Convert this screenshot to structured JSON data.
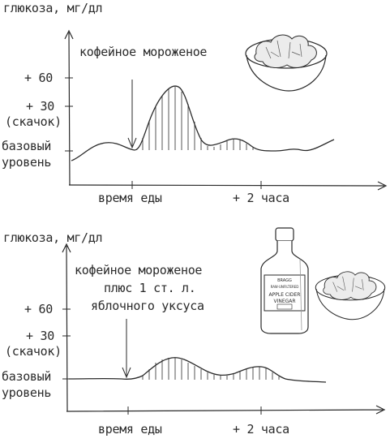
{
  "panels": [
    {
      "y_axis_label": "глюкоза, мг/дл",
      "annotation_lines": [
        "кофейное мороженое"
      ],
      "y_ticks": [
        "+ 60",
        "+ 30",
        "(скачок)",
        "базовый",
        "уровень"
      ],
      "x_ticks": [
        "время еды",
        "+ 2 часа"
      ],
      "curve": {
        "baseline_level": 0,
        "peaks": [
          {
            "label": "spike",
            "relative_height": 1.0
          },
          {
            "label": "second bump",
            "relative_height": 0.2
          }
        ]
      },
      "images": [
        "ice-cream-bowl"
      ]
    },
    {
      "y_axis_label": "глюкоза, мг/дл",
      "annotation_lines": [
        "кофейное мороженое",
        "плюс 1 ст. л.",
        "яблочного уксуса"
      ],
      "y_ticks": [
        "+ 60",
        "+ 30",
        "(скачок)",
        "базовый",
        "уровень"
      ],
      "x_ticks": [
        "время еды",
        "+ 2 часа"
      ],
      "curve": {
        "baseline_level": 0,
        "peaks": [
          {
            "label": "reduced spike",
            "relative_height": 0.35
          },
          {
            "label": "second bump",
            "relative_height": 0.2
          }
        ]
      },
      "images": [
        "vinegar-bottle",
        "ice-cream-bowl"
      ],
      "bottle_label": {
        "brand": "BRAGG",
        "lines": [
          "RAW·UNFILTERED",
          "APPLE CIDER",
          "VINEGAR"
        ]
      }
    }
  ]
}
